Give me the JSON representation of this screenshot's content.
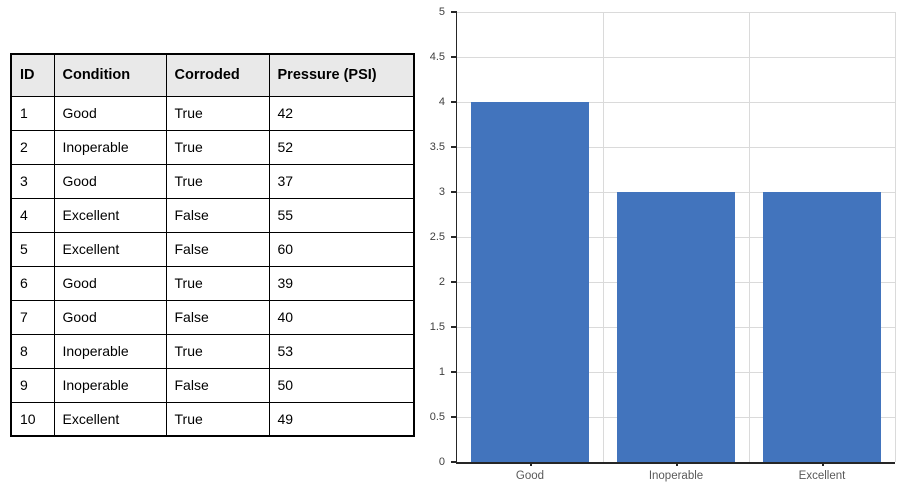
{
  "table": {
    "headers": [
      "ID",
      "Condition",
      "Corroded",
      "Pressure (PSI)"
    ],
    "rows": [
      [
        "1",
        "Good",
        "True",
        "42"
      ],
      [
        "2",
        "Inoperable",
        "True",
        "52"
      ],
      [
        "3",
        "Good",
        "True",
        "37"
      ],
      [
        "4",
        "Excellent",
        "False",
        "55"
      ],
      [
        "5",
        "Excellent",
        "False",
        "60"
      ],
      [
        "6",
        "Good",
        "True",
        "39"
      ],
      [
        "7",
        "Good",
        "False",
        "40"
      ],
      [
        "8",
        "Inoperable",
        "True",
        "53"
      ],
      [
        "9",
        "Inoperable",
        "False",
        "50"
      ],
      [
        "10",
        "Excellent",
        "True",
        "49"
      ]
    ],
    "header_bg": "#e9e9e9",
    "border_color": "#000000"
  },
  "chart_data": {
    "type": "bar",
    "categories": [
      "Good",
      "Inoperable",
      "Excellent"
    ],
    "values": [
      4,
      3,
      3
    ],
    "title": "",
    "xlabel": "",
    "ylabel": "",
    "ylim": [
      0,
      5
    ],
    "ytick_step": 0.5,
    "ytick_labels": [
      "0",
      "0.5",
      "1",
      "1.5",
      "2",
      "2.5",
      "3",
      "3.5",
      "4",
      "4.5",
      "5"
    ],
    "grid": true,
    "legend": "none",
    "colors": {
      "bar": "#4274bd",
      "grid": "#dadada",
      "axis": "#262626",
      "ytick_text": "#404040",
      "xtick_text": "#595959"
    }
  }
}
